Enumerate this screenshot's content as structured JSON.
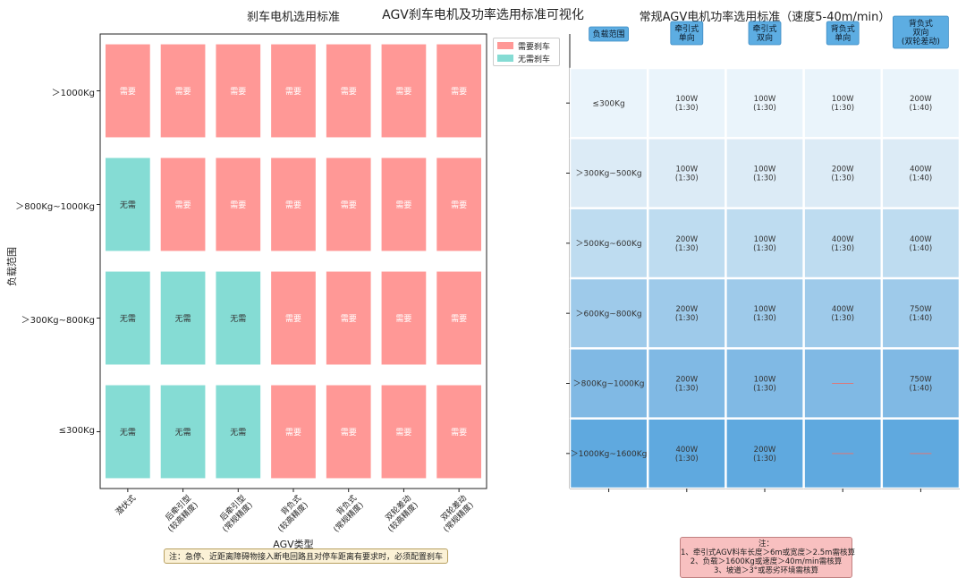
{
  "page_title": "AGV刹车电机及功率选用标准可视化",
  "colors": {
    "need": "#FF9896",
    "no_need": "#85DCD4",
    "header_box": "#5DADE2"
  },
  "chart_data": [
    {
      "type": "heatmap",
      "title": "刹车电机选用标准",
      "xlabel": "AGV类型",
      "ylabel": "负载范围",
      "x_categories": [
        "潜伏式",
        "后牵引型\n(较高精度)",
        "后牵引型\n(常规精度)",
        "背负式\n(较高精度)",
        "背负式\n(常规精度)",
        "双轮差动\n(较高精度)",
        "双轮差动\n(常规精度)"
      ],
      "y_categories": [
        "＞1000Kg",
        "＞800Kg~1000Kg",
        "＞300Kg~800Kg",
        "≤300Kg"
      ],
      "values": [
        [
          "需要",
          "需要",
          "需要",
          "需要",
          "需要",
          "需要",
          "需要"
        ],
        [
          "无需",
          "需要",
          "需要",
          "需要",
          "需要",
          "需要",
          "需要"
        ],
        [
          "无需",
          "无需",
          "无需",
          "需要",
          "需要",
          "需要",
          "需要"
        ],
        [
          "无需",
          "无需",
          "无需",
          "需要",
          "需要",
          "需要",
          "需要"
        ]
      ],
      "legend": {
        "position": "upper-right-outside",
        "items": [
          {
            "label": "需要刹车",
            "key": "need"
          },
          {
            "label": "无需刹车",
            "key": "no_need"
          }
        ]
      },
      "note": "注：急停、近距离障碍物接入断电回路且对停车距离有要求时，必须配置刹车"
    },
    {
      "type": "table",
      "title": "常规AGV电机功率选用标准（速度5-40m/min）",
      "columns": [
        "负载范围",
        "牵引式\n单向",
        "牵引式\n双向",
        "背负式\n单向",
        "背负式\n双向\n(双轮差动)"
      ],
      "rows": [
        [
          "≤300Kg",
          "100W\n(1:30)",
          "100W\n(1:30)",
          "100W\n(1:30)",
          "200W\n(1:40)"
        ],
        [
          "＞300Kg~500Kg",
          "100W\n(1:30)",
          "100W\n(1:30)",
          "200W\n(1:30)",
          "400W\n(1:40)"
        ],
        [
          "＞500Kg~600Kg",
          "200W\n(1:30)",
          "100W\n(1:30)",
          "400W\n(1:30)",
          "400W\n(1:40)"
        ],
        [
          "＞600Kg~800Kg",
          "200W\n(1:30)",
          "100W\n(1:30)",
          "400W\n(1:30)",
          "750W\n(1:40)"
        ],
        [
          "＞800Kg~1000Kg",
          "200W\n(1:30)",
          "100W\n(1:30)",
          "——",
          "750W\n(1:40)"
        ],
        [
          "＞1000Kg~1600Kg",
          "400W\n(1:30)",
          "200W\n(1:30)",
          "——",
          "——"
        ]
      ],
      "row_colors": [
        "#EAF4FB",
        "#DCEBF6",
        "#BEDCF0",
        "#9ECAEA",
        "#80B9E4",
        "#5FA9DF"
      ],
      "note_lines": [
        "注：",
        "1、牵引式AGV料车长度＞6m或宽度＞2.5m需核算",
        "2、负载＞1600Kg或速度＞40m/min需核算",
        "3、坡道＞3°或恶劣环境需核算"
      ]
    }
  ]
}
